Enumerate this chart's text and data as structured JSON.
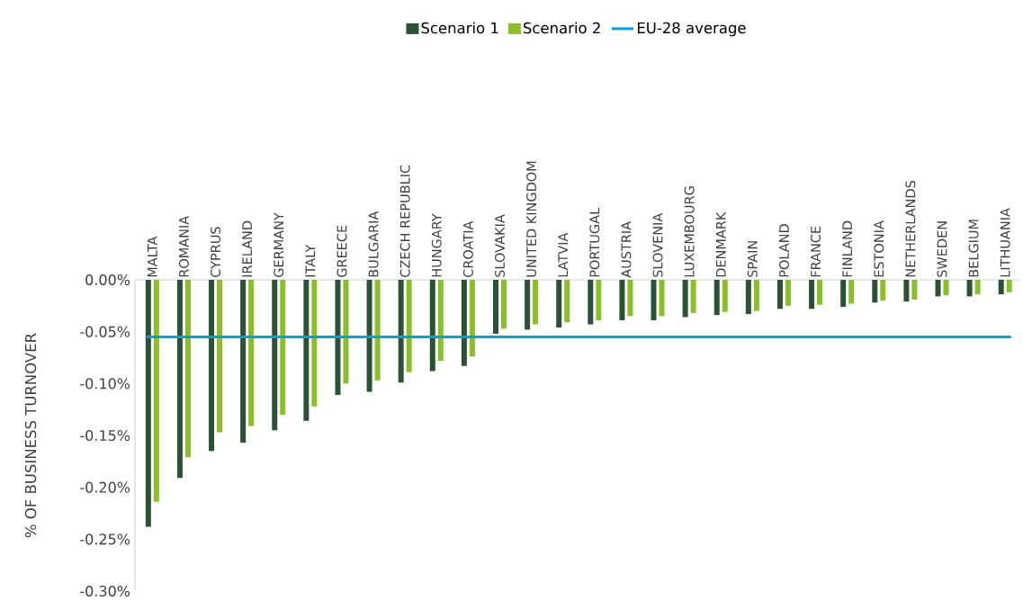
{
  "chart_data": {
    "type": "bar",
    "ylabel": "% OF BUSINESS TURNOVER",
    "categories": [
      "MALTA",
      "ROMANIA",
      "CYPRUS",
      "IRELAND",
      "GERMANY",
      "ITALY",
      "GREECE",
      "BULGARIA",
      "CZECH REPUBLIC",
      "HUNGARY",
      "CROATIA",
      "SLOVAKIA",
      "UNITED KINGDOM",
      "LATVIA",
      "PORTUGAL",
      "AUSTRIA",
      "SLOVENIA",
      "LUXEMBOURG",
      "DENMARK",
      "SPAIN",
      "POLAND",
      "FRANCE",
      "FINLAND",
      "ESTONIA",
      "NETHERLANDS",
      "SWEDEN",
      "BELGIUM",
      "LITHUANIA"
    ],
    "series": [
      {
        "name": "Scenario 1",
        "color": "#2b5235",
        "values": [
          -0.238,
          -0.191,
          -0.165,
          -0.157,
          -0.145,
          -0.136,
          -0.111,
          -0.108,
          -0.099,
          -0.088,
          -0.083,
          -0.052,
          -0.048,
          -0.046,
          -0.043,
          -0.039,
          -0.039,
          -0.036,
          -0.034,
          -0.033,
          -0.028,
          -0.028,
          -0.026,
          -0.022,
          -0.021,
          -0.016,
          -0.016,
          -0.014
        ]
      },
      {
        "name": "Scenario 2",
        "color": "#8bbf2a",
        "values": [
          -0.214,
          -0.171,
          -0.147,
          -0.141,
          -0.13,
          -0.122,
          -0.1,
          -0.097,
          -0.089,
          -0.078,
          -0.074,
          -0.047,
          -0.043,
          -0.041,
          -0.039,
          -0.035,
          -0.035,
          -0.032,
          -0.031,
          -0.03,
          -0.025,
          -0.024,
          -0.023,
          -0.02,
          -0.019,
          -0.015,
          -0.014,
          -0.012
        ]
      }
    ],
    "ref_lines": [
      {
        "axis": "y",
        "value": -0.055,
        "label": "EU-28 average",
        "color": "#00a0df"
      }
    ],
    "ylim": [
      -0.3,
      0
    ],
    "yticks": [
      {
        "value": 0,
        "label": "0.00%"
      },
      {
        "value": -0.05,
        "label": "-0.05%"
      },
      {
        "value": -0.1,
        "label": "-0.10%"
      },
      {
        "value": -0.15,
        "label": "-0.15%"
      },
      {
        "value": -0.2,
        "label": "-0.20%"
      },
      {
        "value": -0.25,
        "label": "-0.25%"
      },
      {
        "value": -0.3,
        "label": "-0.30%"
      }
    ],
    "legend": "top"
  }
}
